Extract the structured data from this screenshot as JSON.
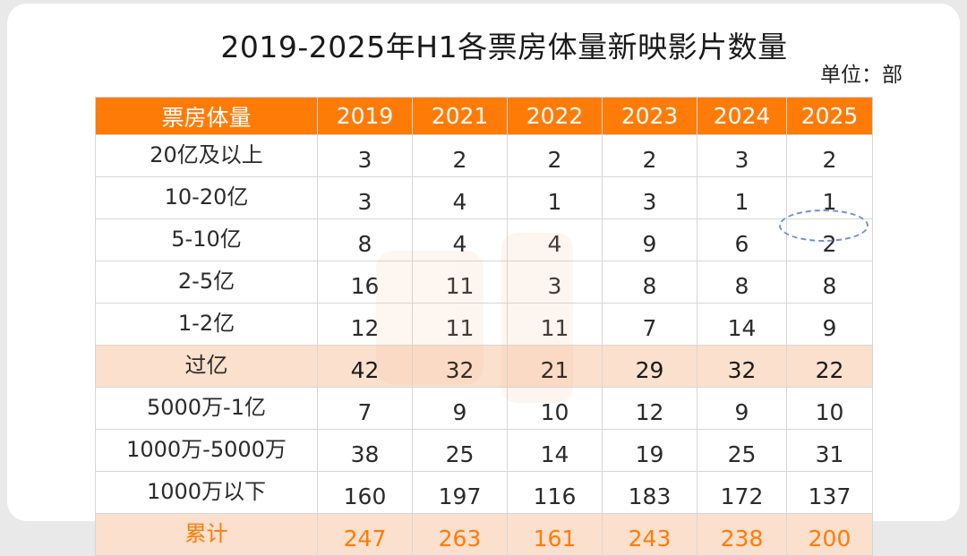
{
  "title": "2019-2025年H1各票房体量新映影片数量",
  "unit": "单位：部",
  "header": {
    "label": "票房体量",
    "years": [
      "2019",
      "2021",
      "2022",
      "2023",
      "2024",
      "2025"
    ]
  },
  "rows": [
    {
      "label": "20亿及以上",
      "values": [
        "3",
        "2",
        "2",
        "2",
        "3",
        "2"
      ],
      "style": "normal"
    },
    {
      "label": "10-20亿",
      "values": [
        "3",
        "4",
        "1",
        "3",
        "1",
        "1"
      ],
      "style": "normal"
    },
    {
      "label": "5-10亿",
      "values": [
        "8",
        "4",
        "4",
        "9",
        "6",
        "2"
      ],
      "style": "normal"
    },
    {
      "label": "2-5亿",
      "values": [
        "16",
        "11",
        "3",
        "8",
        "8",
        "8"
      ],
      "style": "normal"
    },
    {
      "label": "1-2亿",
      "values": [
        "12",
        "11",
        "11",
        "7",
        "14",
        "9"
      ],
      "style": "normal"
    },
    {
      "label": "过亿",
      "values": [
        "42",
        "32",
        "21",
        "29",
        "32",
        "22"
      ],
      "style": "highlight"
    },
    {
      "label": "5000万-1亿",
      "values": [
        "7",
        "9",
        "10",
        "12",
        "9",
        "10"
      ],
      "style": "normal"
    },
    {
      "label": "1000万-5000万",
      "values": [
        "38",
        "25",
        "14",
        "19",
        "25",
        "31"
      ],
      "style": "normal"
    },
    {
      "label": "1000万以下",
      "values": [
        "160",
        "197",
        "116",
        "183",
        "172",
        "137"
      ],
      "style": "normal"
    },
    {
      "label": "累计",
      "values": [
        "247",
        "263",
        "161",
        "243",
        "238",
        "200"
      ],
      "style": "total"
    }
  ],
  "colors": {
    "header_bg": "#ff7b08",
    "highlight_bg": "#fbe0cd",
    "total_text": "#ff7b08",
    "annotation": "#6f8fd6"
  },
  "annotation": {
    "icon": "dashed-oval-highlight",
    "target": "5-10亿 / 2025"
  }
}
